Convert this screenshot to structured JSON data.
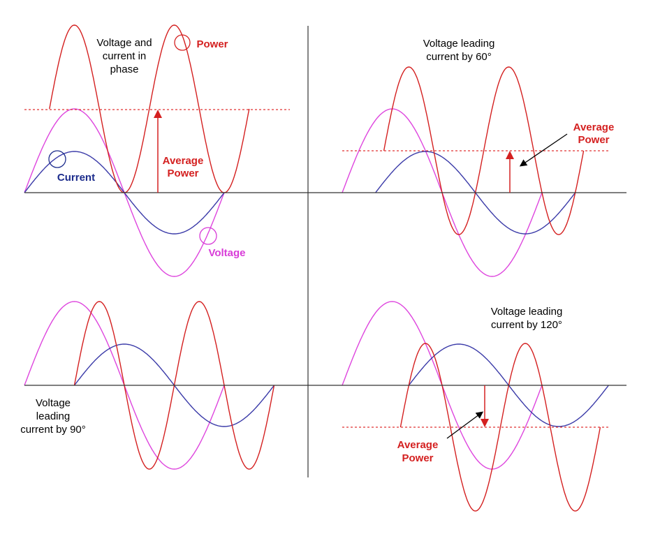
{
  "panels": [
    {
      "title": [
        "Voltage and",
        "current in",
        "phase"
      ],
      "power_label": "Power",
      "current_label": "Current",
      "voltage_label": "Voltage",
      "average_label": [
        "Average",
        "Power"
      ]
    },
    {
      "title": [
        "Voltage leading",
        "current by 60°"
      ],
      "average_label": [
        "Average",
        "Power"
      ]
    },
    {
      "title": [
        "Voltage",
        "leading",
        "current by 90°"
      ]
    },
    {
      "title": [
        "Voltage leading",
        "current by 120°"
      ],
      "average_label": [
        "Average",
        "Power"
      ]
    }
  ]
}
